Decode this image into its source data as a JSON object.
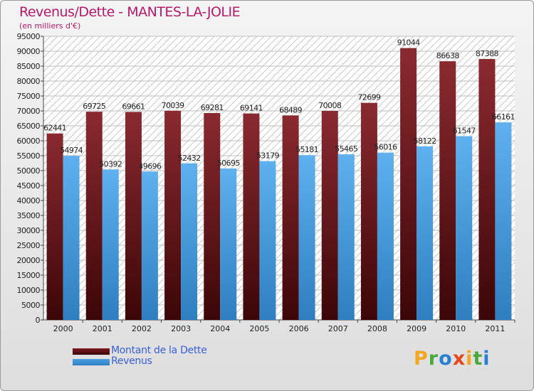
{
  "title": "Revenus/Dette - MANTES-LA-JOLIE",
  "subtitle": "(en milliers d'€)",
  "colors": {
    "dette": "#7a1a1f",
    "revenus": "#4a9fe0",
    "title": "#b51a6a",
    "legend_text": "#3a5fd8"
  },
  "logo": {
    "letters": [
      "P",
      "r",
      "o",
      "x",
      "i",
      "t",
      "i"
    ],
    "colors": [
      "#f5a623",
      "#4aa83c",
      "#2a7fd4",
      "#e8461c",
      "#f5a623",
      "#4aa83c",
      "#2a7fd4"
    ]
  },
  "chart_data": {
    "type": "bar",
    "categories": [
      "2000",
      "2001",
      "2002",
      "2003",
      "2004",
      "2005",
      "2006",
      "2007",
      "2008",
      "2009",
      "2010",
      "2011"
    ],
    "series": [
      {
        "name": "Montant de la Dette",
        "values": [
          62441,
          69725,
          69661,
          70039,
          69281,
          69141,
          68489,
          70008,
          72699,
          91044,
          86638,
          87388
        ]
      },
      {
        "name": "Revenus",
        "values": [
          54974,
          50392,
          49696,
          52432,
          50695,
          53179,
          55181,
          55465,
          56016,
          58122,
          61547,
          66161
        ]
      }
    ],
    "ylim": [
      0,
      95000
    ],
    "yticks": [
      0,
      5000,
      10000,
      15000,
      20000,
      25000,
      30000,
      35000,
      40000,
      45000,
      50000,
      55000,
      60000,
      65000,
      70000,
      75000,
      80000,
      85000,
      90000,
      95000
    ],
    "grid": true,
    "legend": "bottom-left"
  }
}
